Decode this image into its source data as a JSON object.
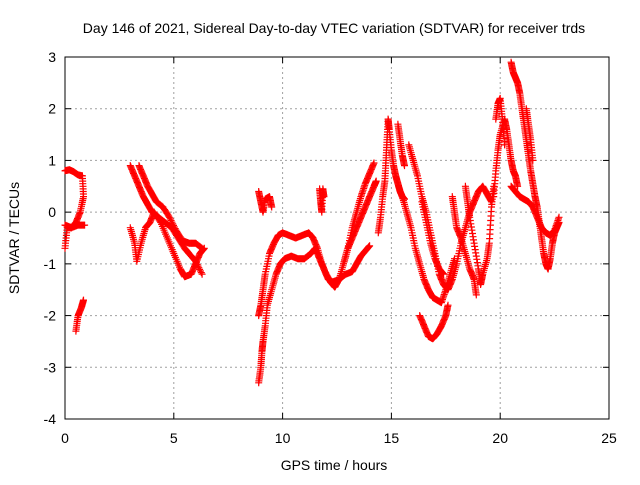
{
  "chart_data": {
    "type": "scatter",
    "title": "Day 146 of 2021, Sidereal Day-to-day VTEC variation (SDTVAR) for receiver trds",
    "xlabel": "GPS time / hours",
    "ylabel": "SDTVAR / TECUs",
    "xlim": [
      0,
      25
    ],
    "ylim": [
      -4,
      3
    ],
    "x_ticks": [
      "0",
      "5",
      "10",
      "15",
      "20",
      "25"
    ],
    "y_ticks": [
      "-4",
      "-3",
      "-2",
      "-1",
      "0",
      "1",
      "2",
      "3"
    ],
    "grid": true,
    "marker": "plus",
    "series": [
      {
        "name": "SDTVAR",
        "color": "#ff0000",
        "tracks": [
          [
            [
              0.0,
              0.8
            ],
            [
              0.2,
              0.82
            ],
            [
              0.4,
              0.78
            ],
            [
              0.6,
              0.72
            ],
            [
              0.8,
              0.7
            ],
            [
              0.85,
              0.3
            ],
            [
              0.7,
              0.0
            ],
            [
              0.5,
              -0.2
            ],
            [
              0.3,
              -0.3
            ],
            [
              0.1,
              -0.3
            ],
            [
              0.0,
              -0.7
            ]
          ],
          [
            [
              0.0,
              -0.25
            ],
            [
              0.3,
              -0.3
            ],
            [
              0.6,
              -0.25
            ],
            [
              0.9,
              -0.25
            ]
          ],
          [
            [
              0.5,
              -2.3
            ],
            [
              0.6,
              -2.0
            ],
            [
              0.75,
              -1.85
            ],
            [
              0.85,
              -1.7
            ]
          ],
          [
            [
              3.0,
              0.9
            ],
            [
              3.2,
              0.7
            ],
            [
              3.4,
              0.5
            ],
            [
              3.6,
              0.3
            ],
            [
              3.8,
              0.15
            ],
            [
              4.0,
              0.0
            ],
            [
              4.3,
              -0.1
            ],
            [
              4.6,
              -0.2
            ],
            [
              4.9,
              -0.3
            ],
            [
              5.2,
              -0.5
            ],
            [
              5.5,
              -0.7
            ],
            [
              5.7,
              -0.8
            ],
            [
              6.0,
              -0.95
            ],
            [
              6.3,
              -1.2
            ]
          ],
          [
            [
              3.0,
              -0.3
            ],
            [
              3.2,
              -0.6
            ],
            [
              3.3,
              -0.95
            ],
            [
              3.5,
              -0.6
            ],
            [
              3.7,
              -0.3
            ],
            [
              3.9,
              -0.2
            ],
            [
              4.1,
              0.0
            ],
            [
              4.4,
              -0.2
            ],
            [
              4.7,
              -0.5
            ],
            [
              5.0,
              -0.8
            ],
            [
              5.3,
              -1.1
            ],
            [
              5.5,
              -1.25
            ],
            [
              5.8,
              -1.2
            ],
            [
              6.0,
              -1.0
            ],
            [
              6.2,
              -0.8
            ],
            [
              6.4,
              -0.7
            ]
          ],
          [
            [
              3.4,
              0.9
            ],
            [
              3.6,
              0.7
            ],
            [
              3.8,
              0.5
            ],
            [
              4.0,
              0.35
            ],
            [
              4.2,
              0.2
            ],
            [
              4.5,
              0.1
            ],
            [
              4.8,
              -0.1
            ],
            [
              5.1,
              -0.35
            ],
            [
              5.4,
              -0.55
            ],
            [
              5.7,
              -0.6
            ],
            [
              6.0,
              -0.6
            ],
            [
              6.3,
              -0.7
            ]
          ],
          [
            [
              8.9,
              0.4
            ],
            [
              9.0,
              0.2
            ],
            [
              9.1,
              0.0
            ],
            [
              9.2,
              0.25
            ],
            [
              9.4,
              0.3
            ],
            [
              9.5,
              0.1
            ]
          ],
          [
            [
              8.9,
              -3.3
            ],
            [
              9.0,
              -3.0
            ],
            [
              9.05,
              -2.7
            ],
            [
              9.1,
              -2.5
            ],
            [
              9.2,
              -2.2
            ],
            [
              9.3,
              -1.8
            ],
            [
              9.5,
              -1.5
            ],
            [
              9.7,
              -1.2
            ],
            [
              9.9,
              -1.0
            ],
            [
              10.1,
              -0.9
            ],
            [
              10.4,
              -0.85
            ],
            [
              10.7,
              -0.9
            ],
            [
              11.0,
              -0.9
            ],
            [
              11.3,
              -0.8
            ],
            [
              11.5,
              -0.7
            ],
            [
              11.7,
              -0.9
            ],
            [
              11.9,
              -1.1
            ],
            [
              12.1,
              -1.3
            ],
            [
              12.3,
              -1.35
            ],
            [
              12.6,
              -1.3
            ],
            [
              12.9,
              -1.2
            ],
            [
              13.2,
              -1.15
            ],
            [
              13.4,
              -1.0
            ],
            [
              13.6,
              -0.85
            ],
            [
              13.8,
              -0.75
            ],
            [
              14.0,
              -0.65
            ]
          ],
          [
            [
              8.9,
              -2.0
            ],
            [
              9.0,
              -1.8
            ],
            [
              9.1,
              -1.5
            ],
            [
              9.2,
              -1.2
            ],
            [
              9.4,
              -0.8
            ],
            [
              9.6,
              -0.6
            ],
            [
              9.8,
              -0.45
            ],
            [
              10.0,
              -0.4
            ],
            [
              10.3,
              -0.45
            ],
            [
              10.6,
              -0.5
            ],
            [
              10.9,
              -0.45
            ],
            [
              11.2,
              -0.4
            ],
            [
              11.4,
              -0.5
            ],
            [
              11.6,
              -0.7
            ],
            [
              11.8,
              -1.0
            ],
            [
              12.0,
              -1.2
            ],
            [
              12.2,
              -1.35
            ],
            [
              12.4,
              -1.45
            ],
            [
              12.6,
              -1.3
            ],
            [
              12.8,
              -1.0
            ],
            [
              13.0,
              -0.7
            ],
            [
              13.2,
              -0.5
            ],
            [
              13.4,
              -0.3
            ],
            [
              13.6,
              -0.1
            ],
            [
              13.8,
              0.1
            ],
            [
              14.0,
              0.3
            ],
            [
              14.2,
              0.5
            ],
            [
              14.3,
              0.6
            ]
          ],
          [
            [
              11.7,
              0.45
            ],
            [
              11.75,
              0.2
            ],
            [
              11.8,
              0.0
            ],
            [
              11.85,
              0.45
            ],
            [
              11.9,
              0.3
            ]
          ],
          [
            [
              12.8,
              -1.0
            ],
            [
              13.0,
              -0.7
            ],
            [
              13.2,
              -0.3
            ],
            [
              13.4,
              0.0
            ],
            [
              13.6,
              0.3
            ],
            [
              13.8,
              0.55
            ],
            [
              14.0,
              0.75
            ],
            [
              14.2,
              0.95
            ]
          ],
          [
            [
              14.4,
              -0.4
            ],
            [
              14.5,
              -0.1
            ],
            [
              14.6,
              0.3
            ],
            [
              14.7,
              0.6
            ],
            [
              14.75,
              1.0
            ],
            [
              14.8,
              1.4
            ],
            [
              14.85,
              1.8
            ],
            [
              14.9,
              1.6
            ],
            [
              15.0,
              1.2
            ],
            [
              15.1,
              0.9
            ],
            [
              15.2,
              0.7
            ],
            [
              15.3,
              0.55
            ],
            [
              15.4,
              0.4
            ],
            [
              15.5,
              0.3
            ],
            [
              15.6,
              0.25
            ]
          ],
          [
            [
              15.3,
              1.7
            ],
            [
              15.4,
              1.4
            ],
            [
              15.5,
              1.1
            ],
            [
              15.6,
              0.9
            ]
          ],
          [
            [
              15.5,
              0.3
            ],
            [
              15.7,
              0.0
            ],
            [
              15.9,
              -0.3
            ],
            [
              16.1,
              -0.7
            ],
            [
              16.3,
              -1.0
            ],
            [
              16.5,
              -1.3
            ],
            [
              16.7,
              -1.5
            ],
            [
              16.9,
              -1.65
            ],
            [
              17.1,
              -1.7
            ],
            [
              17.3,
              -1.75
            ],
            [
              17.5,
              -1.5
            ],
            [
              17.7,
              -1.2
            ],
            [
              17.9,
              -0.9
            ]
          ],
          [
            [
              15.8,
              1.3
            ],
            [
              16.0,
              1.0
            ],
            [
              16.2,
              0.7
            ],
            [
              16.4,
              0.3
            ],
            [
              16.6,
              0.0
            ],
            [
              16.8,
              -0.4
            ],
            [
              17.0,
              -0.8
            ],
            [
              17.2,
              -1.2
            ],
            [
              17.4,
              -1.4
            ],
            [
              17.6,
              -1.5
            ],
            [
              17.8,
              -1.3
            ],
            [
              18.0,
              -1.0
            ],
            [
              18.2,
              -0.6
            ],
            [
              18.4,
              -0.3
            ],
            [
              18.6,
              0.0
            ],
            [
              18.8,
              0.2
            ],
            [
              19.0,
              0.4
            ],
            [
              19.2,
              0.5
            ],
            [
              19.4,
              0.35
            ],
            [
              19.6,
              0.2
            ]
          ],
          [
            [
              16.4,
              0.2
            ],
            [
              16.6,
              -0.2
            ],
            [
              16.8,
              -0.6
            ],
            [
              17.0,
              -0.9
            ],
            [
              17.2,
              -1.1
            ],
            [
              17.4,
              -1.2
            ]
          ],
          [
            [
              16.3,
              -2.0
            ],
            [
              16.5,
              -2.2
            ],
            [
              16.7,
              -2.4
            ],
            [
              16.9,
              -2.45
            ],
            [
              17.1,
              -2.35
            ],
            [
              17.3,
              -2.2
            ],
            [
              17.5,
              -2.0
            ],
            [
              17.6,
              -1.8
            ]
          ],
          [
            [
              17.8,
              0.3
            ],
            [
              17.9,
              0.0
            ],
            [
              18.0,
              -0.3
            ],
            [
              18.2,
              -0.5
            ],
            [
              18.4,
              -0.8
            ],
            [
              18.6,
              -1.1
            ],
            [
              18.8,
              -1.3
            ],
            [
              18.9,
              -1.6
            ]
          ],
          [
            [
              18.4,
              0.5
            ],
            [
              18.5,
              0.2
            ],
            [
              18.6,
              -0.1
            ],
            [
              18.8,
              -0.6
            ],
            [
              19.0,
              -1.1
            ],
            [
              19.1,
              -1.4
            ],
            [
              19.2,
              -1.2
            ],
            [
              19.4,
              -0.9
            ],
            [
              19.5,
              -0.6
            ],
            [
              19.6,
              0.1
            ],
            [
              19.7,
              0.5
            ]
          ],
          [
            [
              19.7,
              0.3
            ],
            [
              19.8,
              0.8
            ],
            [
              19.9,
              1.2
            ],
            [
              20.0,
              1.5
            ],
            [
              20.2,
              1.8
            ],
            [
              20.3,
              1.6
            ],
            [
              20.4,
              1.3
            ],
            [
              20.5,
              1.0
            ],
            [
              20.6,
              0.8
            ],
            [
              20.7,
              0.7
            ],
            [
              20.8,
              0.5
            ]
          ],
          [
            [
              20.5,
              2.9
            ],
            [
              20.6,
              2.7
            ],
            [
              20.7,
              2.6
            ],
            [
              20.8,
              2.5
            ],
            [
              20.9,
              2.3
            ],
            [
              21.0,
              2.0
            ],
            [
              21.1,
              1.7
            ],
            [
              21.2,
              1.4
            ],
            [
              21.3,
              1.1
            ],
            [
              21.4,
              0.8
            ],
            [
              21.5,
              0.55
            ],
            [
              21.6,
              0.3
            ],
            [
              21.7,
              0.1
            ],
            [
              21.8,
              -0.2
            ],
            [
              21.9,
              -0.5
            ],
            [
              22.0,
              -0.8
            ],
            [
              22.1,
              -1.0
            ],
            [
              22.2,
              -1.1
            ],
            [
              22.3,
              -0.9
            ],
            [
              22.4,
              -0.6
            ],
            [
              22.5,
              -0.4
            ],
            [
              22.6,
              -0.3
            ],
            [
              22.7,
              -0.2
            ]
          ],
          [
            [
              20.5,
              0.5
            ],
            [
              20.7,
              0.4
            ],
            [
              20.9,
              0.3
            ],
            [
              21.1,
              0.25
            ],
            [
              21.3,
              0.2
            ],
            [
              21.5,
              0.1
            ],
            [
              21.7,
              -0.1
            ],
            [
              21.9,
              -0.3
            ],
            [
              22.1,
              -0.4
            ],
            [
              22.3,
              -0.45
            ],
            [
              22.5,
              -0.35
            ],
            [
              22.7,
              -0.1
            ]
          ],
          [
            [
              19.8,
              1.8
            ],
            [
              19.9,
              2.1
            ],
            [
              20.0,
              2.2
            ],
            [
              20.1,
              1.8
            ],
            [
              20.2,
              1.3
            ]
          ],
          [
            [
              21.2,
              2.0
            ],
            [
              21.3,
              1.7
            ],
            [
              21.4,
              1.4
            ],
            [
              21.5,
              1.0
            ]
          ]
        ]
      }
    ]
  }
}
